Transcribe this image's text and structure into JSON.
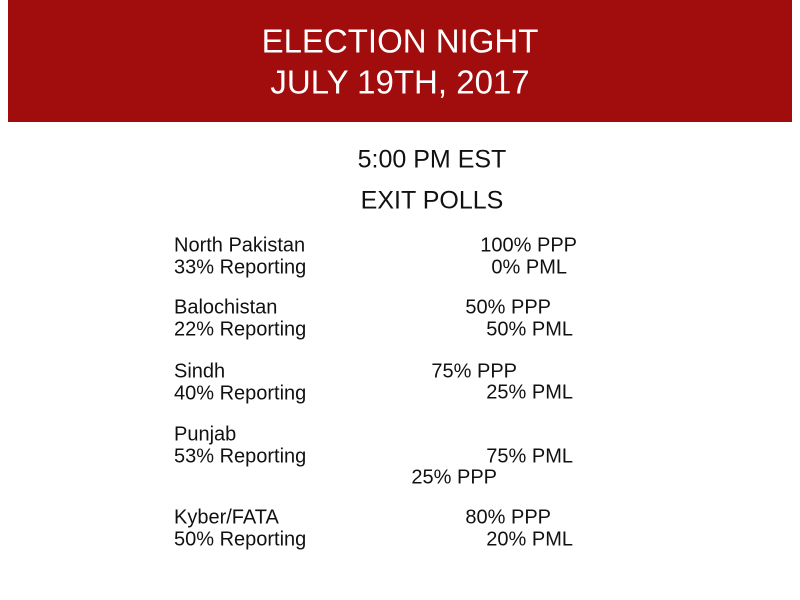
{
  "header": {
    "title_lines": [
      "ELECTION NIGHT",
      "JULY 19TH, 2017"
    ]
  },
  "subtitle": [
    "5:00 PM EST",
    "EXIT POLLS"
  ],
  "regions": [
    {
      "name": "North Pakistan",
      "reporting": "33% Reporting",
      "results": [
        "100% PPP",
        "0% PML"
      ]
    },
    {
      "name": "Balochistan",
      "reporting": "22% Reporting",
      "results": [
        "50% PPP",
        "50% PML"
      ]
    },
    {
      "name": "Sindh",
      "reporting": "40% Reporting",
      "results": [
        "75% PPP",
        "25% PML"
      ]
    },
    {
      "name": "Punjab",
      "reporting": "53% Reporting",
      "results": [
        "75% PML",
        "25% PPP"
      ]
    },
    {
      "name": "Kyber/FATA",
      "reporting": "50% Reporting",
      "results": [
        "80% PPP",
        "20% PML"
      ]
    }
  ]
}
